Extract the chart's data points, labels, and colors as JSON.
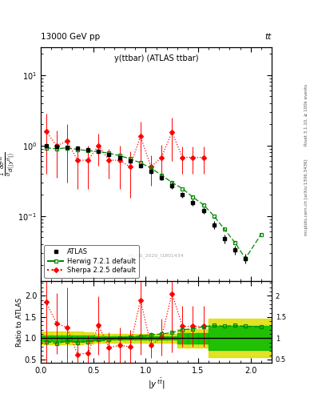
{
  "title_main": "y(ttbar) (ATLAS ttbar)",
  "header_left": "13000 GeV pp",
  "header_right": "tt",
  "right_label_top": "Rivet 3.1.10, ≥ 100k events",
  "right_label_bottom": "mcplots.cern.ch [arXiv:1306.3436]",
  "watermark": "ATLAS_2020_I1801434",
  "ylabel_ratio": "Ratio to ATLAS",
  "atlas_x": [
    0.05,
    0.15,
    0.25,
    0.35,
    0.45,
    0.55,
    0.65,
    0.75,
    0.85,
    0.95,
    1.05,
    1.15,
    1.25,
    1.35,
    1.45,
    1.55,
    1.65,
    1.75,
    1.85,
    1.95
  ],
  "atlas_y": [
    1.0,
    0.97,
    0.95,
    0.93,
    0.88,
    0.82,
    0.75,
    0.68,
    0.6,
    0.52,
    0.43,
    0.35,
    0.27,
    0.2,
    0.155,
    0.12,
    0.075,
    0.048,
    0.033,
    0.025
  ],
  "atlas_yerr_lo": [
    0.05,
    0.04,
    0.04,
    0.04,
    0.04,
    0.04,
    0.04,
    0.04,
    0.03,
    0.03,
    0.03,
    0.03,
    0.025,
    0.02,
    0.015,
    0.012,
    0.009,
    0.007,
    0.005,
    0.004
  ],
  "atlas_yerr_hi": [
    0.05,
    0.04,
    0.04,
    0.04,
    0.04,
    0.04,
    0.04,
    0.04,
    0.03,
    0.03,
    0.03,
    0.03,
    0.025,
    0.02,
    0.015,
    0.012,
    0.009,
    0.007,
    0.005,
    0.004
  ],
  "herwig_x": [
    0.05,
    0.15,
    0.25,
    0.35,
    0.45,
    0.55,
    0.65,
    0.75,
    0.85,
    0.95,
    1.05,
    1.15,
    1.25,
    1.35,
    1.45,
    1.55,
    1.65,
    1.75,
    1.85,
    1.95,
    2.1
  ],
  "herwig_y": [
    0.93,
    0.9,
    0.93,
    0.88,
    0.85,
    0.82,
    0.78,
    0.72,
    0.65,
    0.57,
    0.48,
    0.38,
    0.3,
    0.245,
    0.185,
    0.145,
    0.1,
    0.065,
    0.042,
    0.025,
    0.055
  ],
  "sherpa_x": [
    0.05,
    0.15,
    0.25,
    0.35,
    0.45,
    0.55,
    0.65,
    0.75,
    0.85,
    0.95,
    1.05,
    1.15,
    1.25,
    1.35,
    1.45,
    1.55
  ],
  "sherpa_y": [
    1.6,
    1.0,
    1.15,
    0.62,
    0.62,
    1.0,
    0.62,
    0.62,
    0.5,
    1.35,
    0.5,
    0.68,
    1.55,
    0.68,
    0.68,
    0.68
  ],
  "sherpa_yerr_lo": [
    1.2,
    0.65,
    0.85,
    0.38,
    0.38,
    0.48,
    0.28,
    0.38,
    0.32,
    0.82,
    0.23,
    0.33,
    0.95,
    0.28,
    0.28,
    0.28
  ],
  "sherpa_yerr_hi": [
    1.2,
    0.65,
    0.85,
    0.38,
    0.38,
    0.48,
    0.28,
    0.38,
    0.32,
    0.82,
    0.23,
    0.33,
    0.95,
    0.28,
    0.28,
    0.28
  ],
  "ratio_herwig_x": [
    0.05,
    0.15,
    0.25,
    0.35,
    0.45,
    0.55,
    0.65,
    0.75,
    0.85,
    0.95,
    1.05,
    1.15,
    1.25,
    1.35,
    1.45,
    1.55,
    1.65,
    1.75,
    1.85,
    1.95,
    2.1
  ],
  "ratio_herwig_y": [
    0.92,
    0.88,
    0.93,
    0.9,
    0.92,
    0.96,
    0.97,
    1.0,
    1.03,
    1.05,
    1.08,
    1.1,
    1.13,
    1.2,
    1.22,
    1.27,
    1.3,
    1.28,
    1.3,
    1.28,
    1.27
  ],
  "ratio_sherpa_x": [
    0.05,
    0.15,
    0.25,
    0.35,
    0.45,
    0.55,
    0.65,
    0.75,
    0.85,
    0.95,
    1.05,
    1.15,
    1.25,
    1.35,
    1.45,
    1.55
  ],
  "ratio_sherpa_y": [
    1.85,
    1.35,
    1.25,
    0.62,
    0.65,
    1.3,
    0.78,
    0.83,
    0.8,
    1.9,
    0.83,
    1.02,
    2.05,
    1.28,
    1.28,
    1.28
  ],
  "ratio_sherpa_yerr_lo": [
    1.45,
    0.72,
    0.95,
    0.42,
    0.42,
    0.68,
    0.36,
    0.43,
    0.4,
    1.28,
    0.3,
    0.43,
    1.38,
    0.48,
    0.48,
    0.48
  ],
  "ratio_sherpa_yerr_hi": [
    1.45,
    0.72,
    0.95,
    0.42,
    0.42,
    0.68,
    0.36,
    0.43,
    0.4,
    1.28,
    0.3,
    0.43,
    1.38,
    0.48,
    0.48,
    0.48
  ],
  "band_edges": [
    0.0,
    0.1,
    0.2,
    0.3,
    0.4,
    0.5,
    0.6,
    0.7,
    0.8,
    0.9,
    1.0,
    1.1,
    1.2,
    1.3,
    1.4,
    1.5,
    1.6,
    2.2
  ],
  "band_inner_lo": [
    0.93,
    0.93,
    0.93,
    0.93,
    0.94,
    0.95,
    0.96,
    0.96,
    0.96,
    0.96,
    0.96,
    0.96,
    0.96,
    0.88,
    0.88,
    0.88,
    0.72,
    0.72
  ],
  "band_inner_hi": [
    1.07,
    1.07,
    1.07,
    1.07,
    1.06,
    1.05,
    1.04,
    1.04,
    1.04,
    1.04,
    1.04,
    1.04,
    1.04,
    1.12,
    1.12,
    1.12,
    1.28,
    1.28
  ],
  "band_outer_lo": [
    0.85,
    0.85,
    0.85,
    0.85,
    0.87,
    0.89,
    0.9,
    0.9,
    0.9,
    0.9,
    0.9,
    0.9,
    0.9,
    0.78,
    0.78,
    0.78,
    0.55,
    0.55
  ],
  "band_outer_hi": [
    1.15,
    1.15,
    1.15,
    1.15,
    1.13,
    1.11,
    1.1,
    1.1,
    1.1,
    1.1,
    1.1,
    1.1,
    1.1,
    1.22,
    1.22,
    1.22,
    1.45,
    1.45
  ],
  "xlim": [
    0.0,
    2.2
  ],
  "ylim_main": [
    0.012,
    25
  ],
  "ylim_ratio": [
    0.42,
    2.35
  ],
  "color_atlas": "#000000",
  "color_herwig": "#008800",
  "color_sherpa": "#ff0000",
  "color_band_inner": "#00bb00",
  "color_band_outer": "#dddd00"
}
